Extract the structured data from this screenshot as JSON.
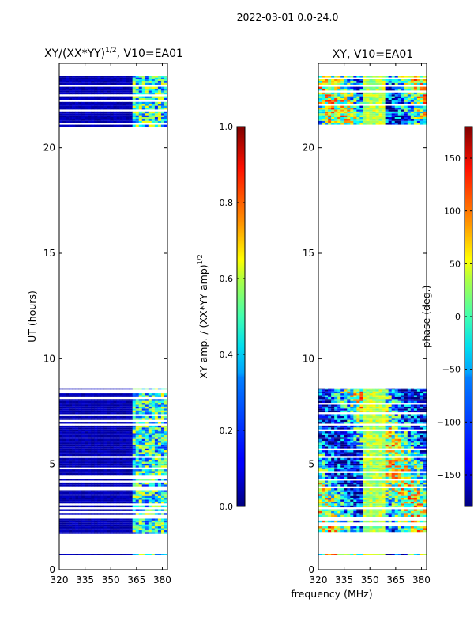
{
  "figure_title": "2022-03-01 0.0-24.0",
  "xlabel": "frequency (MHz)",
  "chart_data": [
    {
      "type": "heatmap",
      "id": "amp",
      "title_main": "XY/(XX*YY)",
      "title_sup": "1/2",
      "title_tail": ", V10=EA01",
      "ylabel": "UT (hours)",
      "xlim": [
        320,
        383
      ],
      "ylim": [
        0,
        24
      ],
      "xticks": [
        320,
        335,
        350,
        365,
        380
      ],
      "yticks": [
        0,
        5,
        10,
        15,
        20
      ],
      "colorbar": {
        "label_main": "XY amp. / (XX*YY amp)",
        "label_sup": "1/2",
        "range": [
          0.0,
          1.0
        ],
        "ticks": [
          "0.0",
          "0.2",
          "0.4",
          "0.6",
          "0.8",
          "1.0"
        ]
      },
      "data_bands_hours": [
        [
          0.7,
          0.75
        ],
        [
          1.7,
          8.6
        ],
        [
          21.0,
          23.4
        ]
      ]
    },
    {
      "type": "heatmap",
      "id": "phase",
      "title": "XY, V10=EA01",
      "ylabel": "",
      "xlim": [
        320,
        383
      ],
      "ylim": [
        0,
        24
      ],
      "xticks": [
        320,
        335,
        350,
        365,
        380
      ],
      "yticks": [
        0,
        5,
        10,
        15,
        20
      ],
      "colorbar": {
        "label": "phase (deg.)",
        "range": [
          -180,
          180
        ],
        "ticks": [
          "-150",
          "-100",
          "-50",
          "0",
          "50",
          "100",
          "150"
        ]
      },
      "data_bands_hours": [
        [
          0.7,
          0.75
        ],
        [
          1.7,
          8.6
        ],
        [
          21.0,
          23.4
        ]
      ]
    }
  ],
  "colors": {
    "jet_low": "#00007f",
    "jet_high": "#7f0000",
    "axis": "#000000"
  }
}
